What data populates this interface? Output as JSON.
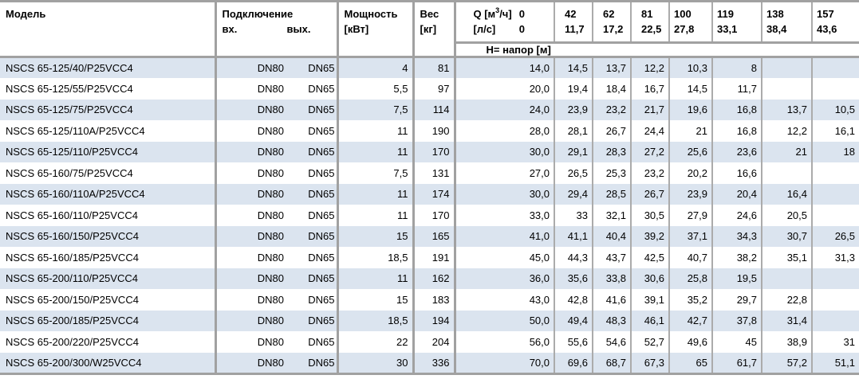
{
  "table": {
    "columns": {
      "model": "Модель",
      "connection": "Подключение",
      "inlet": "вх.",
      "outlet": "вых.",
      "power_line1": "Мощность",
      "power_line2": "[кВт]",
      "weight_line1": "Вес",
      "weight_line2": "[кг]",
      "q_label_prefix": "Q [м",
      "q_sup": "3",
      "q_label_suffix": "/ч]",
      "q_first_value": "0",
      "ls_label": "[л/с]",
      "ls_first_value": "0",
      "head_row_label": "H= напор [м]"
    },
    "flow_columns": [
      {
        "m3h": "42",
        "ls": "11,7"
      },
      {
        "m3h": "62",
        "ls": "17,2"
      },
      {
        "m3h": "81",
        "ls": "22,5"
      },
      {
        "m3h": "100",
        "ls": "27,8"
      },
      {
        "m3h": "119",
        "ls": "33,1"
      },
      {
        "m3h": "138",
        "ls": "38,4"
      },
      {
        "m3h": "157",
        "ls": "43,6"
      }
    ],
    "rows": [
      {
        "model": "NSCS 65-125/40/P25VCC4",
        "inlet": "DN80",
        "outlet": "DN65",
        "power": "4",
        "weight": "81",
        "heads": [
          "14,0",
          "14,5",
          "13,7",
          "12,2",
          "10,3",
          "8",
          "",
          ""
        ]
      },
      {
        "model": "NSCS 65-125/55/P25VCC4",
        "inlet": "DN80",
        "outlet": "DN65",
        "power": "5,5",
        "weight": "97",
        "heads": [
          "20,0",
          "19,4",
          "18,4",
          "16,7",
          "14,5",
          "11,7",
          "",
          ""
        ]
      },
      {
        "model": "NSCS 65-125/75/P25VCC4",
        "inlet": "DN80",
        "outlet": "DN65",
        "power": "7,5",
        "weight": "114",
        "heads": [
          "24,0",
          "23,9",
          "23,2",
          "21,7",
          "19,6",
          "16,8",
          "13,7",
          "10,5"
        ]
      },
      {
        "model": "NSCS 65-125/110A/P25VCC4",
        "inlet": "DN80",
        "outlet": "DN65",
        "power": "11",
        "weight": "190",
        "heads": [
          "28,0",
          "28,1",
          "26,7",
          "24,4",
          "21",
          "16,8",
          "12,2",
          "16,1"
        ]
      },
      {
        "model": "NSCS 65-125/110/P25VCC4",
        "inlet": "DN80",
        "outlet": "DN65",
        "power": "11",
        "weight": "170",
        "heads": [
          "30,0",
          "29,1",
          "28,3",
          "27,2",
          "25,6",
          "23,6",
          "21",
          "18"
        ]
      },
      {
        "model": "NSCS 65-160/75/P25VCC4",
        "inlet": "DN80",
        "outlet": "DN65",
        "power": "7,5",
        "weight": "131",
        "heads": [
          "27,0",
          "26,5",
          "25,3",
          "23,2",
          "20,2",
          "16,6",
          "",
          ""
        ]
      },
      {
        "model": "NSCS 65-160/110A/P25VCC4",
        "inlet": "DN80",
        "outlet": "DN65",
        "power": "11",
        "weight": "174",
        "heads": [
          "30,0",
          "29,4",
          "28,5",
          "26,7",
          "23,9",
          "20,4",
          "16,4",
          ""
        ]
      },
      {
        "model": "NSCS 65-160/110/P25VCC4",
        "inlet": "DN80",
        "outlet": "DN65",
        "power": "11",
        "weight": "170",
        "heads": [
          "33,0",
          "33",
          "32,1",
          "30,5",
          "27,9",
          "24,6",
          "20,5",
          ""
        ]
      },
      {
        "model": "NSCS 65-160/150/P25VCC4",
        "inlet": "DN80",
        "outlet": "DN65",
        "power": "15",
        "weight": "165",
        "heads": [
          "41,0",
          "41,1",
          "40,4",
          "39,2",
          "37,1",
          "34,3",
          "30,7",
          "26,5"
        ]
      },
      {
        "model": "NSCS 65-160/185/P25VCC4",
        "inlet": "DN80",
        "outlet": "DN65",
        "power": "18,5",
        "weight": "191",
        "heads": [
          "45,0",
          "44,3",
          "43,7",
          "42,5",
          "40,7",
          "38,2",
          "35,1",
          "31,3"
        ]
      },
      {
        "model": "NSCS 65-200/110/P25VCC4",
        "inlet": "DN80",
        "outlet": "DN65",
        "power": "11",
        "weight": "162",
        "heads": [
          "36,0",
          "35,6",
          "33,8",
          "30,6",
          "25,8",
          "19,5",
          "",
          ""
        ]
      },
      {
        "model": "NSCS 65-200/150/P25VCC4",
        "inlet": "DN80",
        "outlet": "DN65",
        "power": "15",
        "weight": "183",
        "heads": [
          "43,0",
          "42,8",
          "41,6",
          "39,1",
          "35,2",
          "29,7",
          "22,8",
          ""
        ]
      },
      {
        "model": "NSCS 65-200/185/P25VCC4",
        "inlet": "DN80",
        "outlet": "DN65",
        "power": "18,5",
        "weight": "194",
        "heads": [
          "50,0",
          "49,4",
          "48,3",
          "46,1",
          "42,7",
          "37,8",
          "31,4",
          ""
        ]
      },
      {
        "model": "NSCS 65-200/220/P25VCC4",
        "inlet": "DN80",
        "outlet": "DN65",
        "power": "22",
        "weight": "204",
        "heads": [
          "56,0",
          "55,6",
          "54,6",
          "52,7",
          "49,6",
          "45",
          "38,9",
          "31"
        ]
      },
      {
        "model": "NSCS 65-200/300/W25VCC4",
        "inlet": "DN80",
        "outlet": "DN65",
        "power": "30",
        "weight": "336",
        "heads": [
          "70,0",
          "69,6",
          "68,7",
          "67,3",
          "65",
          "61,7",
          "57,2",
          "51,1"
        ]
      }
    ]
  },
  "colors": {
    "row_stripe": "#dbe4ef",
    "grid_line": "#a1a1a1",
    "grid_line_light": "#ababab",
    "text": "#000000"
  }
}
